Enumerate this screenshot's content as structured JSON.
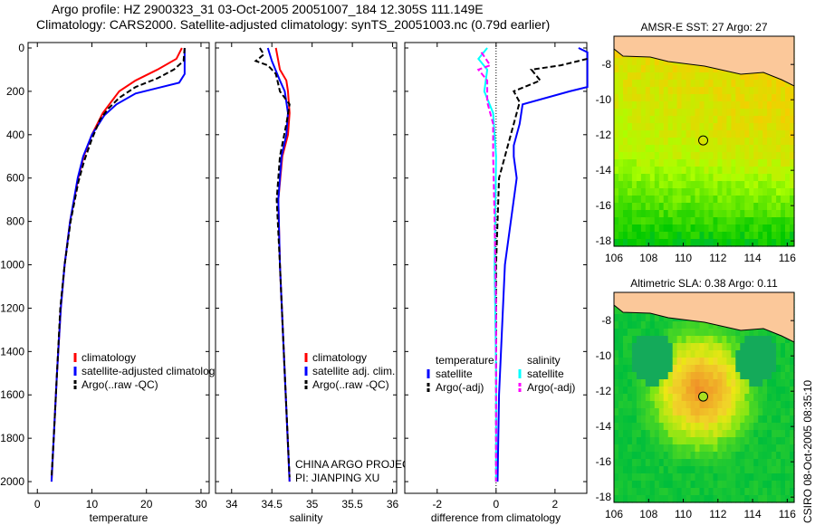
{
  "title_line1": "Argo profile: HZ 2900323_31 03-Oct-2005 20051007_184 12.305S 111.149E",
  "title_line2": "Climatology: CARS2000. Satellite-adjusted climatology: synTS_20051003.nc (0.79d earlier)",
  "footer_vertical": "CSIRO 08-Oct-2005 08:35:10",
  "colors": {
    "climatology": "#ff0000",
    "satellite": "#0000ff",
    "argo": "#000000",
    "sal_satellite": "#00ffff",
    "sal_argo": "#ff00ff"
  },
  "chart_data": [
    {
      "type": "line",
      "xlabel": "temperature",
      "ylabel": "",
      "xlim": [
        -1.7,
        31.5
      ],
      "ylim": [
        2054,
        -25
      ],
      "xticks": [
        0,
        10,
        20,
        30
      ],
      "yticks": [
        0,
        200,
        400,
        600,
        800,
        1000,
        1200,
        1400,
        1600,
        1800,
        2000
      ],
      "legend": [
        "climatology",
        "satellite-adjusted climatology",
        "Argo(..raw -QC)"
      ],
      "legend_placement": "lower-right",
      "series": [
        {
          "name": "climatology",
          "color": "#ff0000",
          "dash": false,
          "points": [
            [
              26.5,
              0
            ],
            [
              25.5,
              50
            ],
            [
              22,
              100
            ],
            [
              18,
              150
            ],
            [
              15,
              200
            ],
            [
              13.5,
              250
            ],
            [
              12,
              300
            ],
            [
              10,
              400
            ],
            [
              8.5,
              500
            ],
            [
              7.5,
              600
            ],
            [
              6,
              800
            ],
            [
              5,
              1000
            ],
            [
              4.3,
              1200
            ],
            [
              3.6,
              1500
            ],
            [
              3,
              1800
            ],
            [
              2.6,
              2000
            ]
          ]
        },
        {
          "name": "satellite-adjusted climatology",
          "color": "#0000ff",
          "dash": false,
          "points": [
            [
              27,
              0
            ],
            [
              27,
              120
            ],
            [
              26,
              160
            ],
            [
              22,
              185
            ],
            [
              18,
              210
            ],
            [
              14.5,
              260
            ],
            [
              12.3,
              310
            ],
            [
              10,
              400
            ],
            [
              8.4,
              500
            ],
            [
              7.4,
              600
            ],
            [
              6,
              800
            ],
            [
              5,
              1000
            ],
            [
              4.3,
              1200
            ],
            [
              3.6,
              1500
            ],
            [
              3,
              1800
            ],
            [
              2.6,
              2000
            ]
          ]
        },
        {
          "name": "Argo(..raw -QC)",
          "color": "#000000",
          "dash": true,
          "points": [
            [
              27,
              0
            ],
            [
              26.8,
              60
            ],
            [
              25,
              100
            ],
            [
              22,
              140
            ],
            [
              18,
              180
            ],
            [
              15,
              230
            ],
            [
              13,
              280
            ],
            [
              11.5,
              330
            ],
            [
              10,
              420
            ],
            [
              8.6,
              520
            ],
            [
              7.5,
              620
            ],
            [
              6.1,
              800
            ],
            [
              5,
              1000
            ],
            [
              4.2,
              1200
            ],
            [
              3.6,
              1500
            ],
            [
              3,
              1800
            ],
            [
              2.6,
              1980
            ]
          ]
        }
      ]
    },
    {
      "type": "line",
      "xlabel": "salinity",
      "ylabel": "",
      "xlim": [
        33.8,
        36.05
      ],
      "ylim": [
        2054,
        -25
      ],
      "xticks": [
        34,
        34.5,
        35,
        35.5,
        36
      ],
      "yticks": [],
      "legend": [
        "climatology",
        "satellite adj. clim.",
        "Argo(..raw -QC)"
      ],
      "legend_placement": "lower-right",
      "annotations": [
        "CHINA ARGO PROJECT",
        "PI: JIANPING XU"
      ],
      "series": [
        {
          "name": "climatology",
          "color": "#ff0000",
          "dash": false,
          "points": [
            [
              34.55,
              0
            ],
            [
              34.6,
              100
            ],
            [
              34.68,
              150
            ],
            [
              34.7,
              200
            ],
            [
              34.72,
              300
            ],
            [
              34.7,
              400
            ],
            [
              34.63,
              500
            ],
            [
              34.58,
              700
            ],
            [
              34.6,
              1000
            ],
            [
              34.66,
              1500
            ],
            [
              34.72,
              2000
            ]
          ]
        },
        {
          "name": "satellite adj. clim.",
          "color": "#0000ff",
          "dash": false,
          "points": [
            [
              34.45,
              0
            ],
            [
              34.5,
              60
            ],
            [
              34.6,
              150
            ],
            [
              34.66,
              200
            ],
            [
              34.7,
              300
            ],
            [
              34.68,
              400
            ],
            [
              34.62,
              500
            ],
            [
              34.58,
              700
            ],
            [
              34.6,
              1000
            ],
            [
              34.66,
              1500
            ],
            [
              34.72,
              2000
            ]
          ]
        },
        {
          "name": "Argo(..raw -QC)",
          "color": "#000000",
          "dash": true,
          "points": [
            [
              34.35,
              0
            ],
            [
              34.4,
              30
            ],
            [
              34.3,
              60
            ],
            [
              34.45,
              80
            ],
            [
              34.55,
              120
            ],
            [
              34.6,
              200
            ],
            [
              34.72,
              260
            ],
            [
              34.68,
              350
            ],
            [
              34.6,
              500
            ],
            [
              34.56,
              700
            ],
            [
              34.6,
              1000
            ],
            [
              34.66,
              1500
            ],
            [
              34.72,
              1980
            ]
          ]
        }
      ]
    },
    {
      "type": "line",
      "xlabel": "difference from climatology",
      "ylabel": "",
      "xlim": [
        -3.1,
        3.08
      ],
      "ylim": [
        2054,
        -25
      ],
      "xticks": [
        -2,
        0,
        2
      ],
      "yticks": [],
      "legend_headers": [
        "temperature",
        "salinity"
      ],
      "legend": [
        "satellite",
        "Argo(-adj)",
        "satellite",
        "Argo(-adj)"
      ],
      "series": [
        {
          "name": "temperature satellite",
          "color": "#0000ff",
          "dash": false,
          "points": [
            [
              2.8,
              0
            ],
            [
              3.1,
              20
            ],
            [
              3.1,
              80
            ],
            [
              3.1,
              180
            ],
            [
              2.5,
              200
            ],
            [
              0.9,
              260
            ],
            [
              0.8,
              350
            ],
            [
              0.6,
              450
            ],
            [
              0.6,
              500
            ],
            [
              0.7,
              600
            ],
            [
              0.5,
              800
            ],
            [
              0.3,
              1000
            ],
            [
              0.2,
              1300
            ],
            [
              0.1,
              1600
            ],
            [
              0.05,
              2000
            ]
          ]
        },
        {
          "name": "temperature Argo(-adj)",
          "color": "#000000",
          "dash": true,
          "points": [
            [
              3.1,
              50
            ],
            [
              2.2,
              80
            ],
            [
              1.2,
              100
            ],
            [
              1.5,
              150
            ],
            [
              0.6,
              200
            ],
            [
              0.8,
              250
            ],
            [
              0.6,
              350
            ],
            [
              0.4,
              450
            ],
            [
              0.1,
              600
            ],
            [
              0,
              1000
            ],
            [
              0,
              1500
            ],
            [
              0,
              2000
            ]
          ]
        },
        {
          "name": "salinity satellite",
          "color": "#00ffff",
          "dash": false,
          "points": [
            [
              -0.3,
              0
            ],
            [
              -0.6,
              50
            ],
            [
              -0.3,
              100
            ],
            [
              -0.4,
              200
            ],
            [
              -0.1,
              300
            ],
            [
              0,
              500
            ],
            [
              -0.05,
              1000
            ],
            [
              0,
              1500
            ],
            [
              0,
              2000
            ]
          ]
        },
        {
          "name": "salinity Argo(-adj)",
          "color": "#ff00ff",
          "dash": true,
          "points": [
            [
              -0.5,
              20
            ],
            [
              -0.2,
              80
            ],
            [
              -0.6,
              100
            ],
            [
              -0.3,
              150
            ],
            [
              -0.3,
              250
            ],
            [
              -0.1,
              350
            ],
            [
              -0.1,
              500
            ],
            [
              -0.05,
              800
            ],
            [
              0,
              1200
            ],
            [
              0,
              2000
            ]
          ]
        }
      ]
    },
    {
      "type": "heatmap",
      "title": "AMSR-E SST: 27 Argo: 27",
      "xlim": [
        106,
        116.4
      ],
      "ylim": [
        -18.3,
        -6.4
      ],
      "xticks": [
        106,
        108,
        110,
        112,
        114,
        116
      ],
      "yticks": [
        -8,
        -10,
        -12,
        -14,
        -16,
        -18
      ],
      "marker": [
        111.149,
        -12.305
      ]
    },
    {
      "type": "heatmap",
      "title": "Altimetric SLA: 0.38 Argo: 0.11",
      "xlim": [
        106,
        116.4
      ],
      "ylim": [
        -18.3,
        -6.4
      ],
      "xticks": [
        106,
        108,
        110,
        112,
        114,
        116
      ],
      "yticks": [
        -8,
        -10,
        -12,
        -14,
        -16,
        -18
      ],
      "marker": [
        111.149,
        -12.305
      ]
    }
  ]
}
